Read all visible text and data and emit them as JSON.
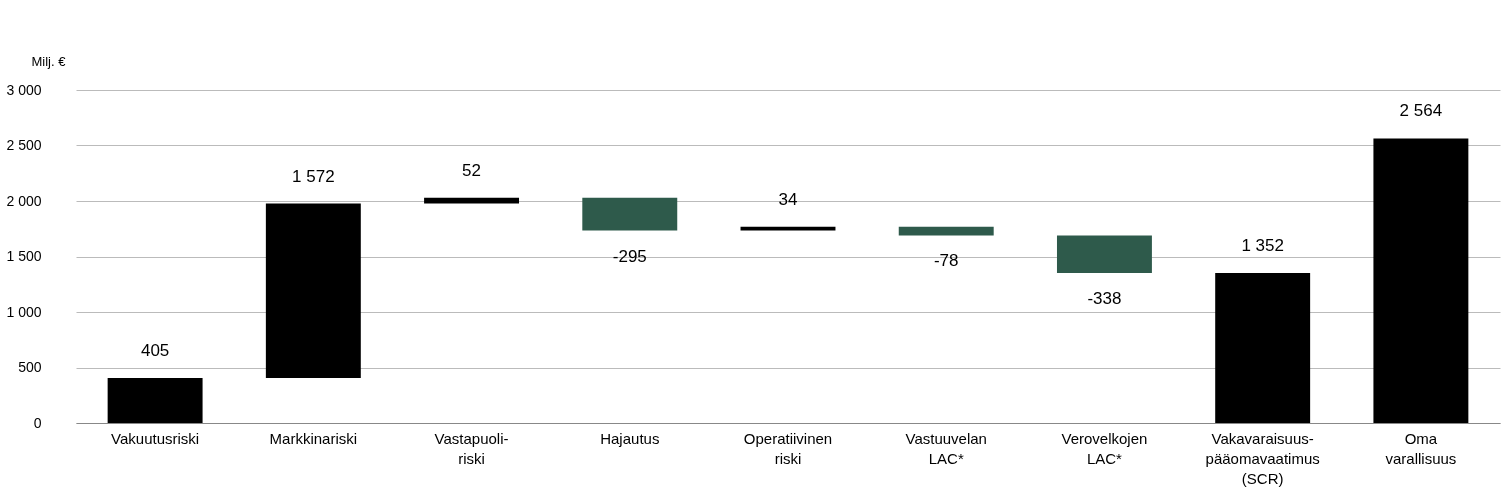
{
  "chart_data": {
    "type": "bar",
    "ylabel": "Milj. €",
    "categories": [
      "Vakuutusriski",
      "Markkinariski",
      "Vastapuoli-\nriski",
      "Hajautus",
      "Operatiivinen\nriski",
      "Vastuuvelan\nLAC*",
      "Verovelkojen\nLAC*",
      "Vakavaraisuus-\npääomavaatimus\n(SCR)",
      "Oma\nvarallisuus"
    ],
    "values": [
      405,
      1572,
      52,
      -295,
      34,
      -78,
      -338,
      1352,
      2564
    ],
    "base": [
      0,
      405,
      1977,
      2029,
      1734,
      1768,
      1690,
      0,
      0
    ],
    "colors": [
      "#000000",
      "#000000",
      "#000000",
      "#2e5a4b",
      "#000000",
      "#2e5a4b",
      "#2e5a4b",
      "#000000",
      "#000000"
    ],
    "value_labels": [
      "405",
      "1 572",
      "52",
      "-295",
      "34",
      "-78",
      "-338",
      "1 352",
      "2 564"
    ],
    "ylim": [
      0,
      3000
    ],
    "yticks": [
      0,
      500,
      {
        "value": 1000,
        "label": "1 000"
      },
      {
        "value": 1500,
        "label": "1 500"
      },
      {
        "value": 2000,
        "label": "2 000"
      },
      {
        "value": 2500,
        "label": "2 500"
      },
      {
        "value": 3000,
        "label": "3 000"
      }
    ],
    "grid": "y"
  }
}
